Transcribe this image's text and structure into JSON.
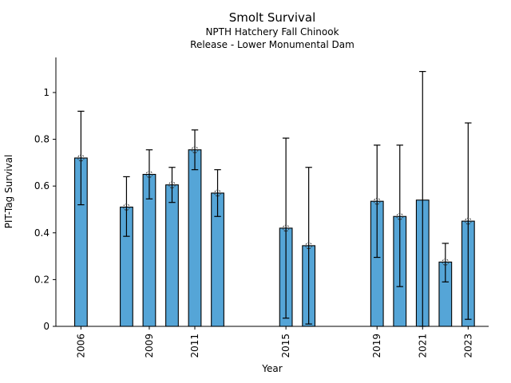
{
  "chart_data": {
    "type": "bar",
    "title": "Smolt Survival",
    "subtitle_line1": "NPTH Hatchery Fall Chinook",
    "subtitle_line2": "Release - Lower Monumental Dam",
    "xlabel": "Year",
    "ylabel": "PIT-Tag Survival",
    "xlim": [
      2004.9,
      2023.9
    ],
    "ylim": [
      0,
      1.15
    ],
    "x_ticks": [
      2006,
      2009,
      2011,
      2015,
      2019,
      2021,
      2023
    ],
    "y_ticks": [
      0,
      0.2,
      0.4,
      0.6,
      0.8,
      1
    ],
    "grid": false,
    "legend": "none",
    "bar_color": "#55A5D7",
    "bar_edge_color": "#000000",
    "errorbar_color": "#000000",
    "marker_style": "open-circle",
    "bar_width_years": 0.55,
    "series": [
      {
        "year": 2006,
        "value": 0.72,
        "ci_low": 0.52,
        "ci_high": 0.92,
        "marker": true
      },
      {
        "year": 2008,
        "value": 0.51,
        "ci_low": 0.385,
        "ci_high": 0.64,
        "marker": true
      },
      {
        "year": 2009,
        "value": 0.65,
        "ci_low": 0.545,
        "ci_high": 0.755,
        "marker": true
      },
      {
        "year": 2010,
        "value": 0.605,
        "ci_low": 0.53,
        "ci_high": 0.68,
        "marker": true
      },
      {
        "year": 2011,
        "value": 0.755,
        "ci_low": 0.67,
        "ci_high": 0.84,
        "marker": true
      },
      {
        "year": 2012,
        "value": 0.57,
        "ci_low": 0.47,
        "ci_high": 0.67,
        "marker": true
      },
      {
        "year": 2015,
        "value": 0.42,
        "ci_low": 0.035,
        "ci_high": 0.805,
        "marker": true
      },
      {
        "year": 2016,
        "value": 0.345,
        "ci_low": 0.01,
        "ci_high": 0.68,
        "marker": true
      },
      {
        "year": 2019,
        "value": 0.535,
        "ci_low": 0.295,
        "ci_high": 0.775,
        "marker": true
      },
      {
        "year": 2020,
        "value": 0.47,
        "ci_low": 0.17,
        "ci_high": 0.775,
        "marker": true
      },
      {
        "year": 2021,
        "value": 0.54,
        "ci_low": 0.0,
        "ci_high": 1.09,
        "marker": false
      },
      {
        "year": 2022,
        "value": 0.275,
        "ci_low": 0.19,
        "ci_high": 0.355,
        "marker": true
      },
      {
        "year": 2023,
        "value": 0.45,
        "ci_low": 0.03,
        "ci_high": 0.87,
        "marker": true
      }
    ]
  }
}
